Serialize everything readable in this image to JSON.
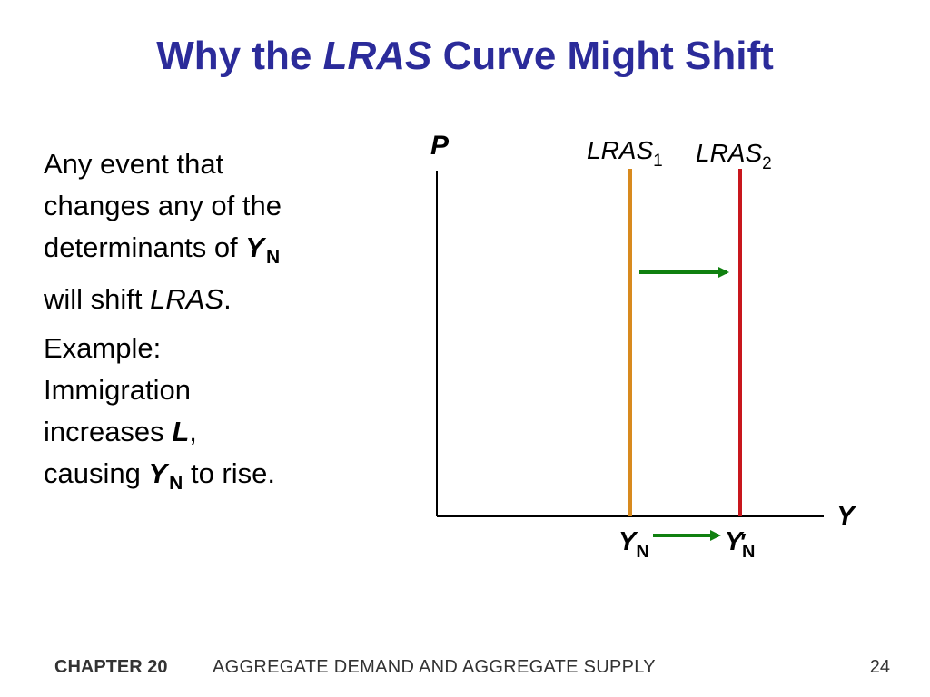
{
  "title": {
    "prefix": "Why the",
    "emphasis": "LRAS",
    "suffix": "Curve Might Shift"
  },
  "body": {
    "p1": {
      "line1": "Any event that",
      "line2": "changes any of the",
      "line3": "determinants of",
      "var": "Y",
      "sub": "N",
      "line4_pre": "will shift",
      "line4_em": "LRAS",
      "line4_post": "."
    },
    "p2": {
      "line1": "Example:",
      "line2": "Immigration",
      "line3_pre": "increases",
      "line3_var": "L",
      "line3_post": ",",
      "line4_pre": "causing",
      "line4_var": "Y",
      "line4_sub": "N",
      "line4_post": "to rise."
    }
  },
  "diagram": {
    "y_axis_label": "P",
    "x_axis_label": "Y",
    "curves": [
      {
        "label": "LRAS",
        "sub": "1",
        "color": "#d88a1e"
      },
      {
        "label": "LRAS",
        "sub": "2",
        "color": "#c8161d"
      }
    ],
    "ticks": [
      {
        "var": "Y",
        "sub": "N",
        "prime": ""
      },
      {
        "var": "Y",
        "sub": "N",
        "prime": "′"
      }
    ],
    "arrow_color": "#108010",
    "axis_color": "#000000"
  },
  "footer": {
    "chapter": "CHAPTER 20",
    "subject": "AGGREGATE DEMAND AND AGGREGATE SUPPLY",
    "page": "24"
  }
}
